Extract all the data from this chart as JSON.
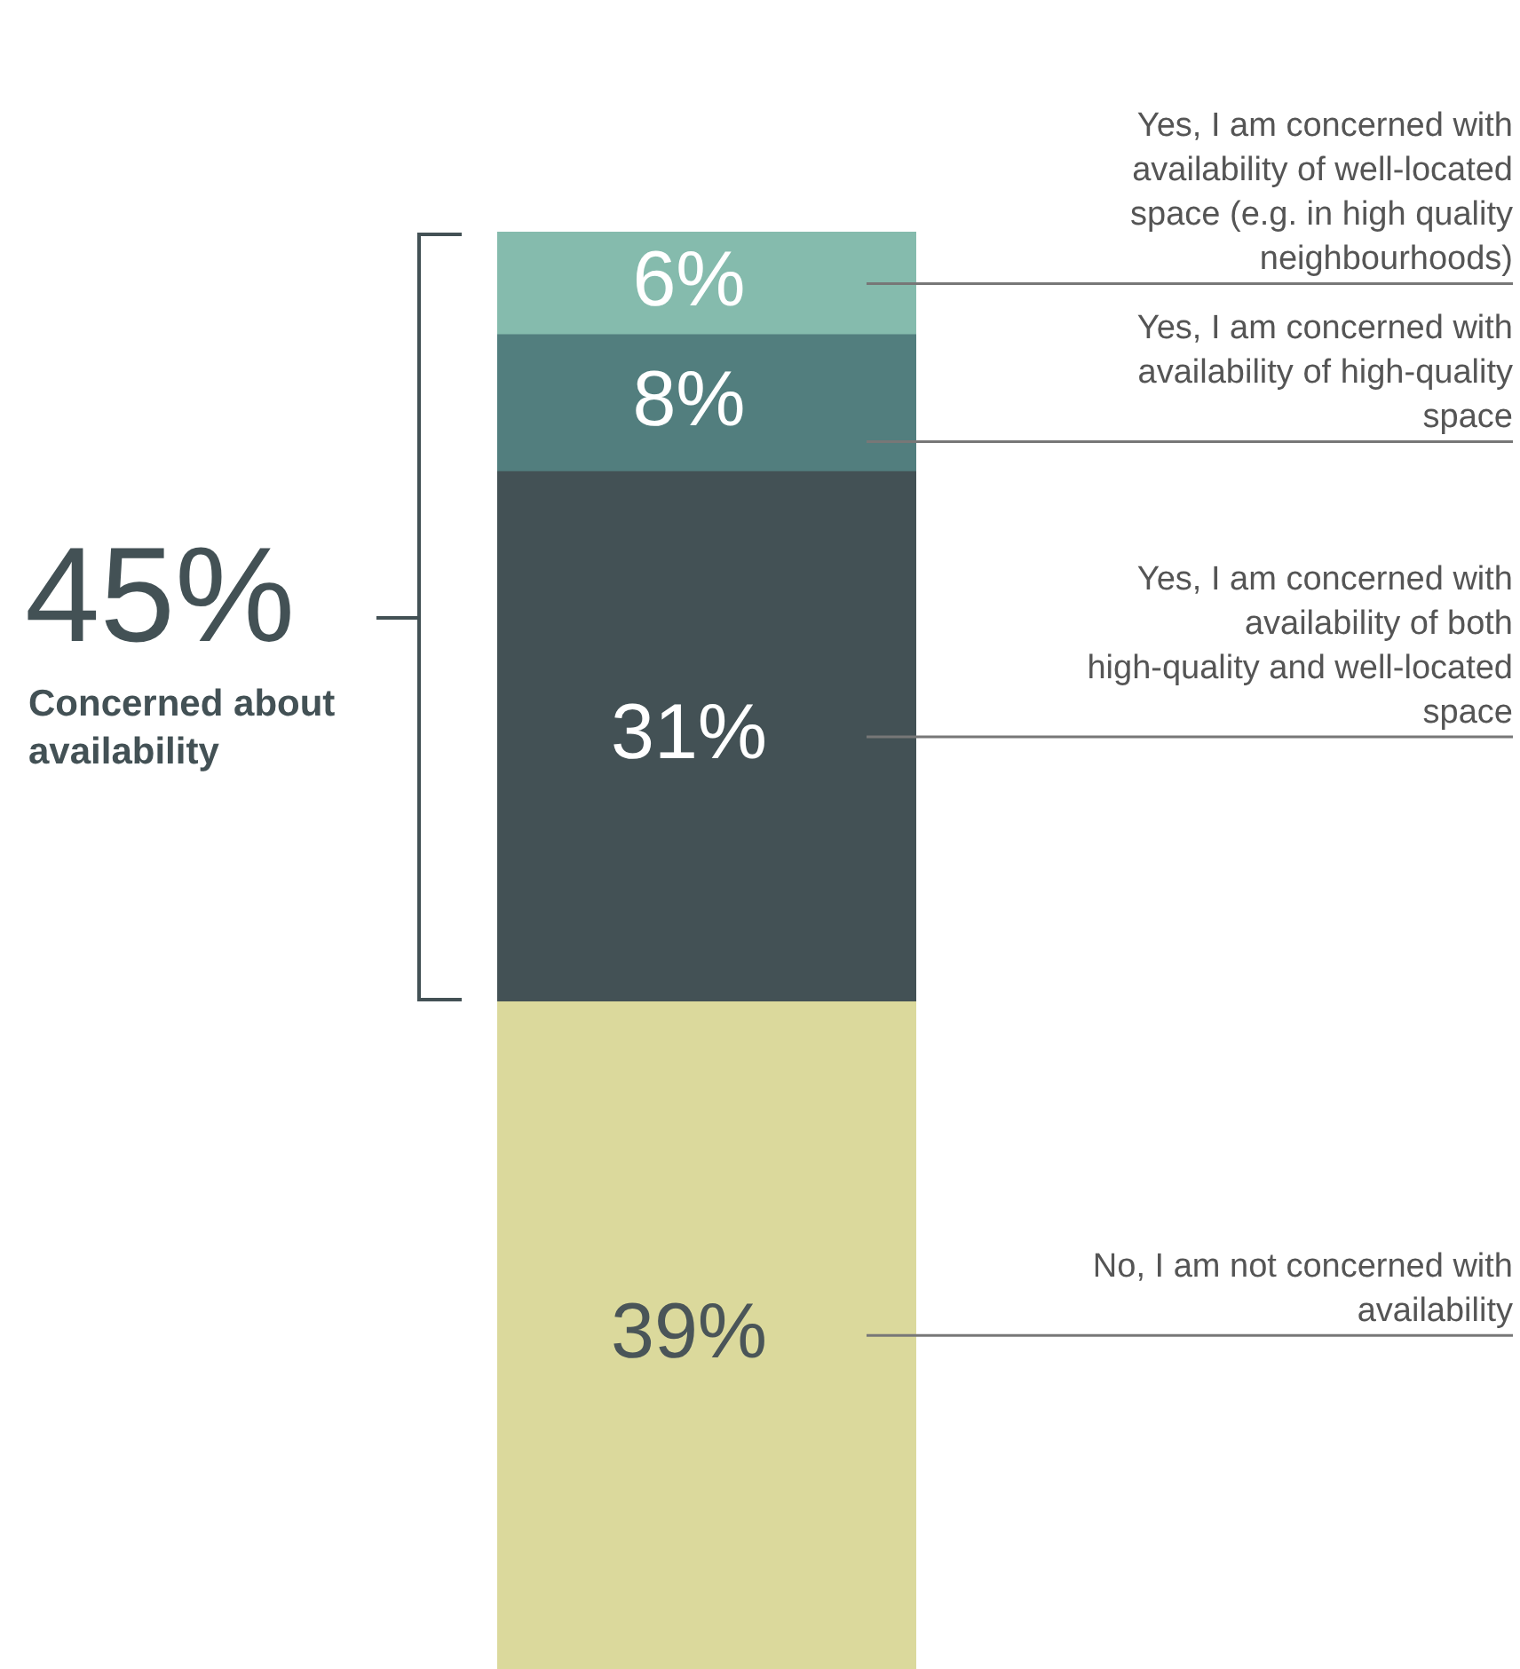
{
  "chart_data": {
    "type": "bar",
    "stacked": true,
    "categories": [
      null
    ],
    "legend": false,
    "series": [
      {
        "name": "No, I am not concerned with availability",
        "color": "#dbd99c",
        "values": [
          39
        ],
        "value_labels": [
          "39%"
        ]
      },
      {
        "name": "Yes, I am concerned with availability of both high-quality and well-located space",
        "color": "#435155",
        "values": [
          31
        ],
        "value_labels": [
          "31%"
        ]
      },
      {
        "name": "Yes, I am concerned with availability of high-quality space",
        "color": "#527e7e",
        "values": [
          8
        ],
        "value_labels": [
          "8%"
        ]
      },
      {
        "name": "Yes, I am concerned with availability of well-located space (e.g. in high quality neighbourhoods)",
        "color": "#85bbad",
        "values": [
          6
        ],
        "value_labels": [
          "6%"
        ]
      }
    ],
    "annotations": [
      "45%",
      "Concerned about availability"
    ]
  }
}
